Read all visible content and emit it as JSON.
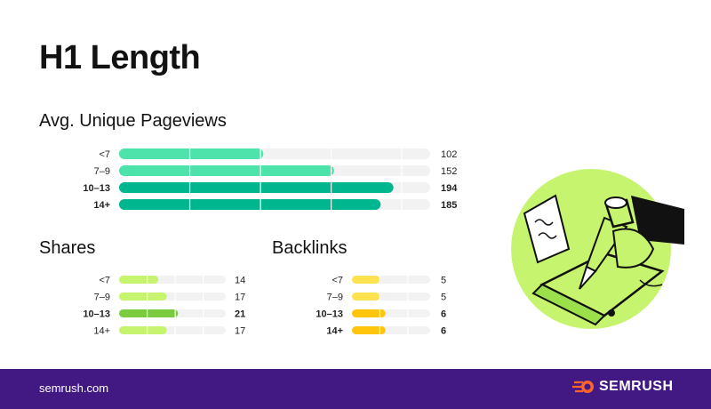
{
  "title": "H1 Length",
  "footer": {
    "site": "semrush.com",
    "brand": "SEMRUSH"
  },
  "chart_data": [
    {
      "type": "bar",
      "orientation": "horizontal",
      "title": "Avg. Unique Pageviews",
      "categories": [
        "<7",
        "7–9",
        "10–13",
        "14+"
      ],
      "values": [
        102,
        152,
        194,
        185
      ],
      "highlight": [
        false,
        false,
        true,
        true
      ],
      "xlim": [
        0,
        220
      ],
      "grid_step": 50,
      "colors": {
        "normal": "#4de3ab",
        "highlight": "#00b68f"
      }
    },
    {
      "type": "bar",
      "orientation": "horizontal",
      "title": "Shares",
      "categories": [
        "<7",
        "7–9",
        "10–13",
        "14+"
      ],
      "values": [
        14,
        17,
        21,
        17
      ],
      "highlight": [
        false,
        false,
        true,
        false
      ],
      "xlim": [
        0,
        38
      ],
      "grid_step": 10,
      "colors": {
        "normal": "#c7f46f",
        "highlight": "#7bcb3f"
      }
    },
    {
      "type": "bar",
      "orientation": "horizontal",
      "title": "Backlinks",
      "categories": [
        "<7",
        "7–9",
        "10–13",
        "14+"
      ],
      "values": [
        5,
        5,
        6,
        6
      ],
      "highlight": [
        false,
        false,
        true,
        true
      ],
      "xlim": [
        0,
        14
      ],
      "grid_step": 5,
      "colors": {
        "normal": "#ffe24f",
        "highlight": "#ffc40c"
      }
    }
  ]
}
